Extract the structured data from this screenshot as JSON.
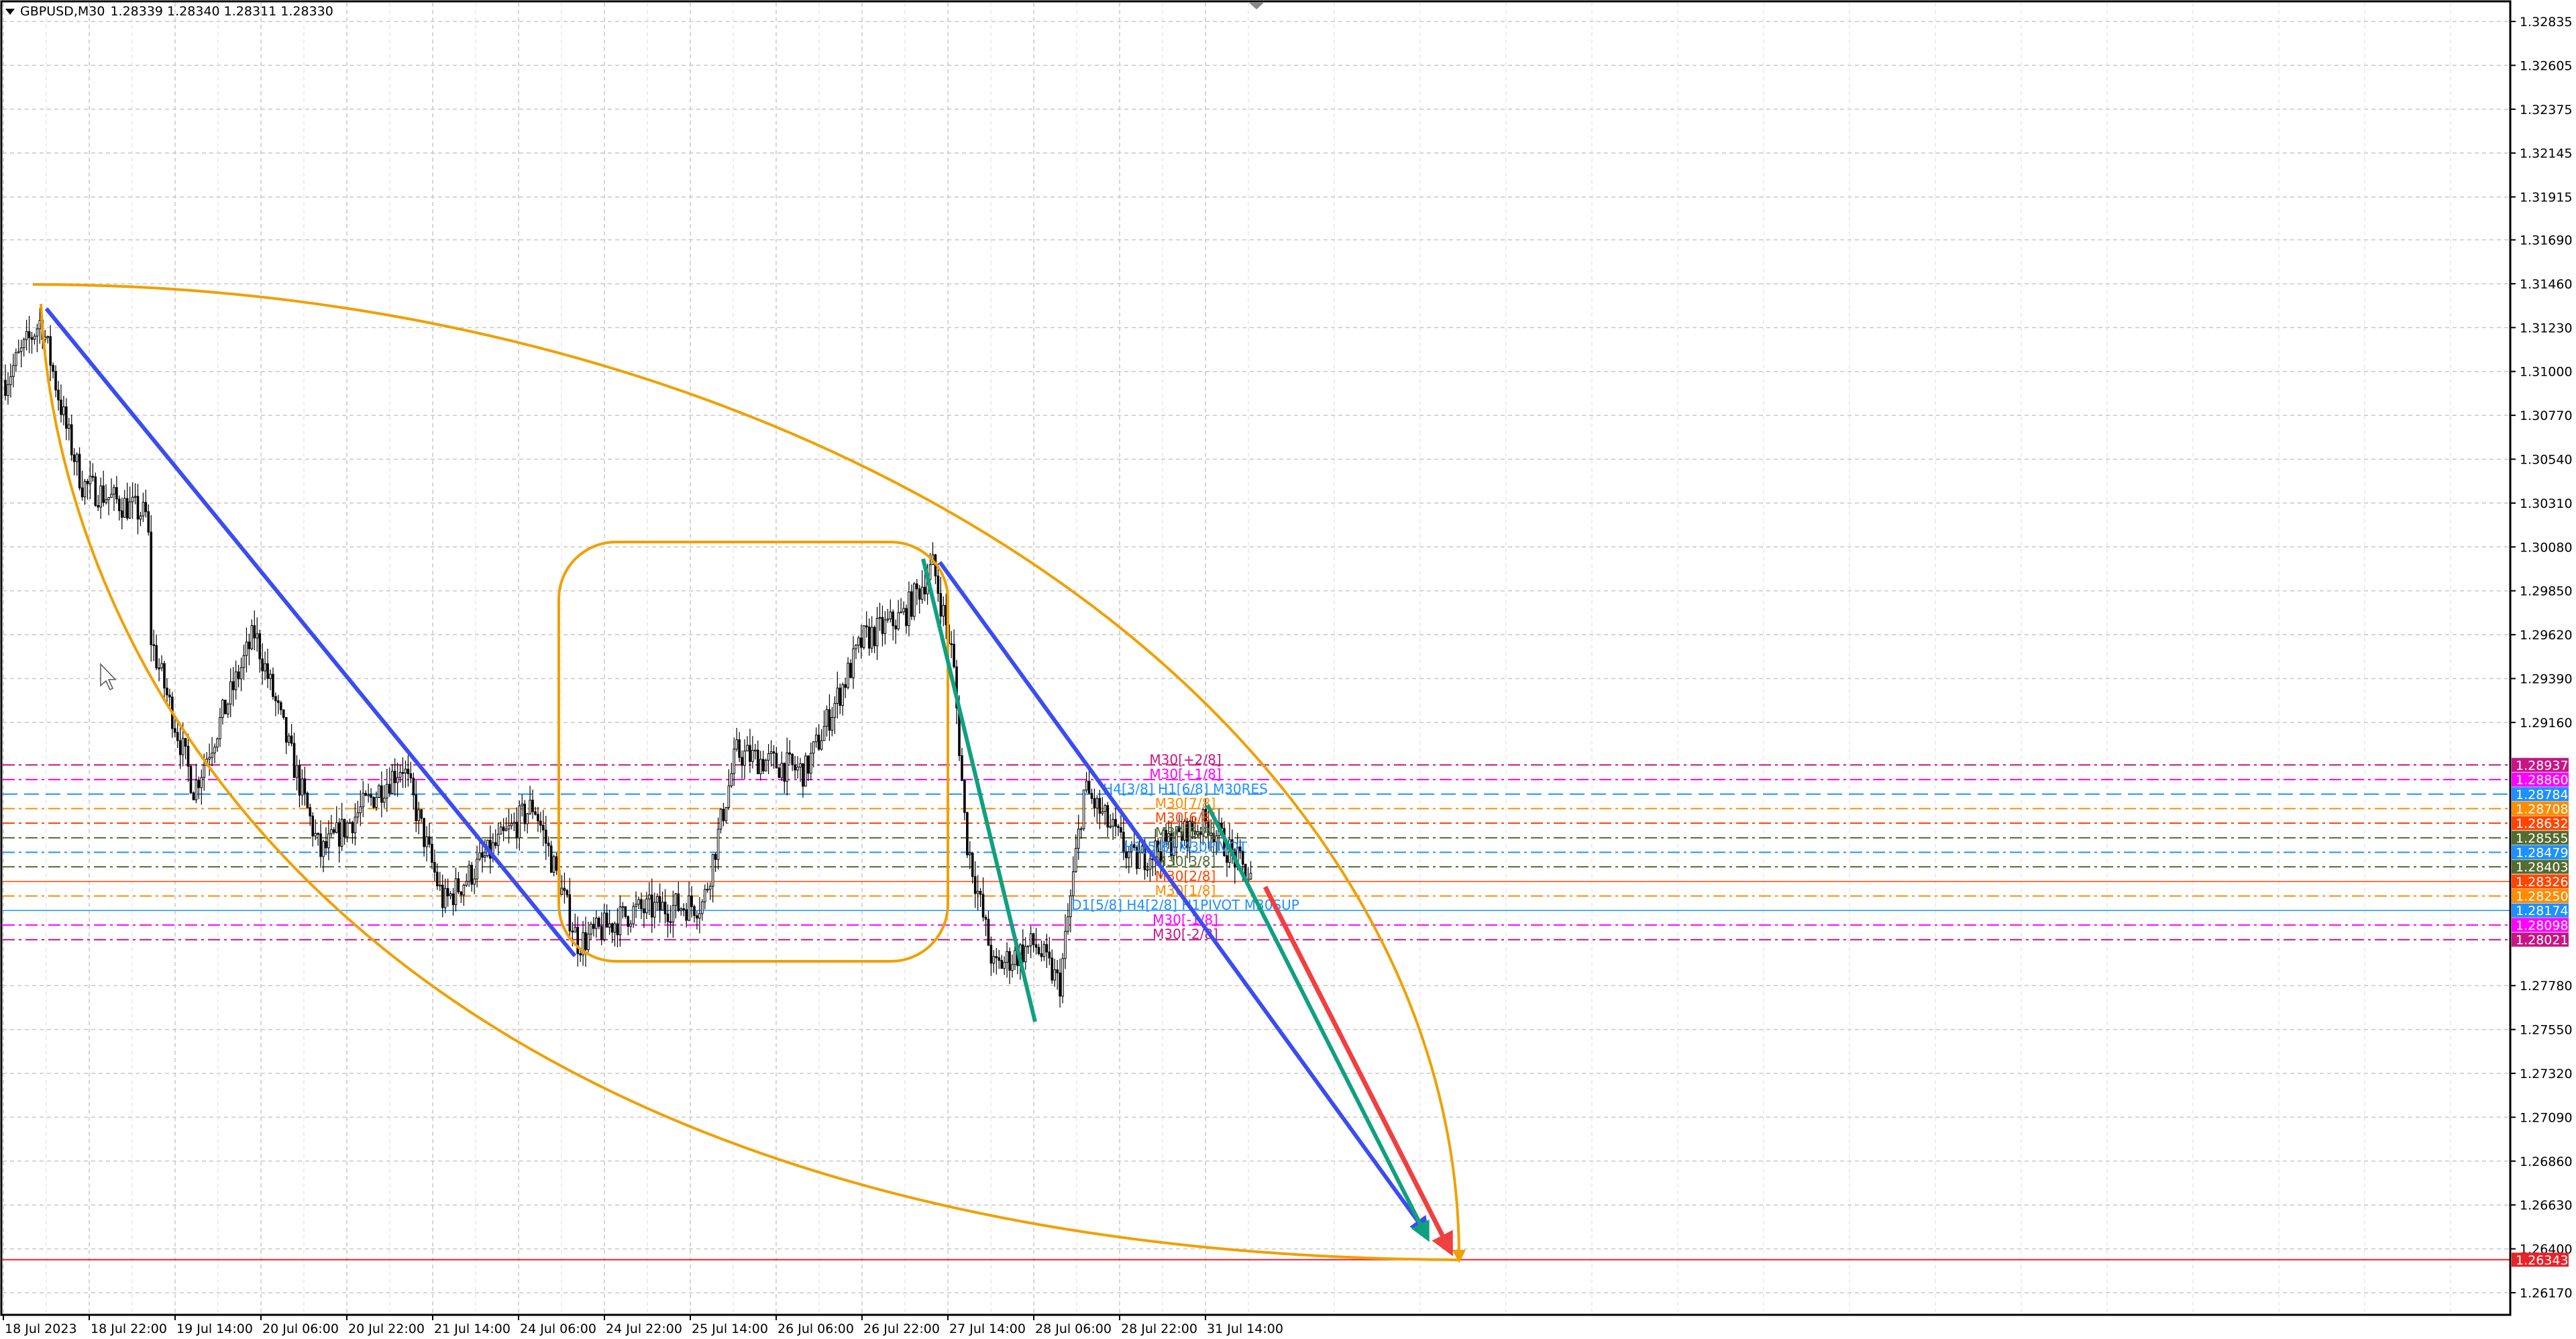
{
  "header": {
    "symbol_timeframe": "GBPUSD,M30",
    "ohlc": "1.28339 1.28340 1.28311 1.28330",
    "dropdown_icon": "triangle-down-icon"
  },
  "chart_data": {
    "type": "candlestick",
    "symbol": "GBPUSD",
    "timeframe": "M30",
    "ylim": [
      1.2605,
      1.3295
    ],
    "grid": true,
    "price_axis_labels": [
      "1.32835",
      "1.32605",
      "1.32375",
      "1.32145",
      "1.31915",
      "1.31690",
      "1.31460",
      "1.31230",
      "1.31000",
      "1.30770",
      "1.30540",
      "1.30310",
      "1.30080",
      "1.29850",
      "1.29620",
      "1.29390",
      "1.29160",
      "1.27780",
      "1.27550",
      "1.27320",
      "1.27090",
      "1.26860",
      "1.26630",
      "1.26400",
      "1.26170"
    ],
    "time_axis_labels": [
      "18 Jul 2023",
      "18 Jul 22:00",
      "19 Jul 14:00",
      "20 Jul 06:00",
      "20 Jul 22:00",
      "21 Jul 14:00",
      "24 Jul 06:00",
      "24 Jul 22:00",
      "25 Jul 14:00",
      "26 Jul 06:00",
      "26 Jul 22:00",
      "27 Jul 14:00",
      "28 Jul 06:00",
      "28 Jul 22:00",
      "31 Jul 14:00"
    ],
    "approx_close_path": [
      1.3095,
      1.3127,
      1.3071,
      1.3041,
      1.3024,
      1.2959,
      1.2881,
      1.2963,
      1.2847,
      1.2894,
      1.2821,
      1.2873,
      1.28,
      1.2817,
      1.2821,
      1.29,
      1.289,
      1.2959,
      1.2972,
      1.2998,
      1.295,
      1.2856,
      1.2787,
      1.28,
      1.2778,
      1.2881,
      1.2843,
      1.2864,
      1.2833
    ],
    "levels": [
      {
        "label": "M30[+2/8]",
        "price": "1.28937",
        "color": "#c71585",
        "style": "dashdot"
      },
      {
        "label": "M30[+1/8]",
        "price": "1.28860",
        "color": "#ff00ff",
        "style": "dashdot"
      },
      {
        "label": "H4[3/8] H1[6/8] M30RES",
        "price": "1.28784",
        "color": "#1e90ff",
        "style": "dash"
      },
      {
        "label": "M30[7/8]",
        "price": "1.28708",
        "color": "#ff8c00",
        "style": "dashdot"
      },
      {
        "label": "M30[6/8]",
        "price": "1.28632",
        "color": "#ff4500",
        "style": "dashdot"
      },
      {
        "label": "M30[5/8]",
        "price": "1.28555",
        "color": "#556b2f",
        "style": "dashdot"
      },
      {
        "label": "H1[5/8] M30PIVOT",
        "price": "1.28479",
        "color": "#1e90ff",
        "style": "dashdot"
      },
      {
        "label": "M30[3/8]",
        "price": "1.28403",
        "color": "#556b2f",
        "style": "dashdot"
      },
      {
        "label": "M30[2/8]",
        "price": "1.28326",
        "color": "#ff4500",
        "style": "solid"
      },
      {
        "label": "M30[1/8]",
        "price": "1.28250",
        "color": "#ff8c00",
        "style": "dashdot"
      },
      {
        "label": "D1[5/8] H4[2/8] H1PIVOT M30SUP",
        "price": "1.28174",
        "color": "#1e90ff",
        "style": "solid"
      },
      {
        "label": "M30[-1/8]",
        "price": "1.28098",
        "color": "#ff00ff",
        "style": "dashdot"
      },
      {
        "label": "M30[-2/8]",
        "price": "1.28021",
        "color": "#c71585",
        "style": "dashdot"
      }
    ],
    "horizontal_line": {
      "price": "1.26343",
      "color": "#e8232a"
    },
    "drawing_colors": {
      "trendline": "#3b4cf0",
      "green": "#10a080",
      "red": "#f04040",
      "shape": "#f0a000"
    }
  }
}
